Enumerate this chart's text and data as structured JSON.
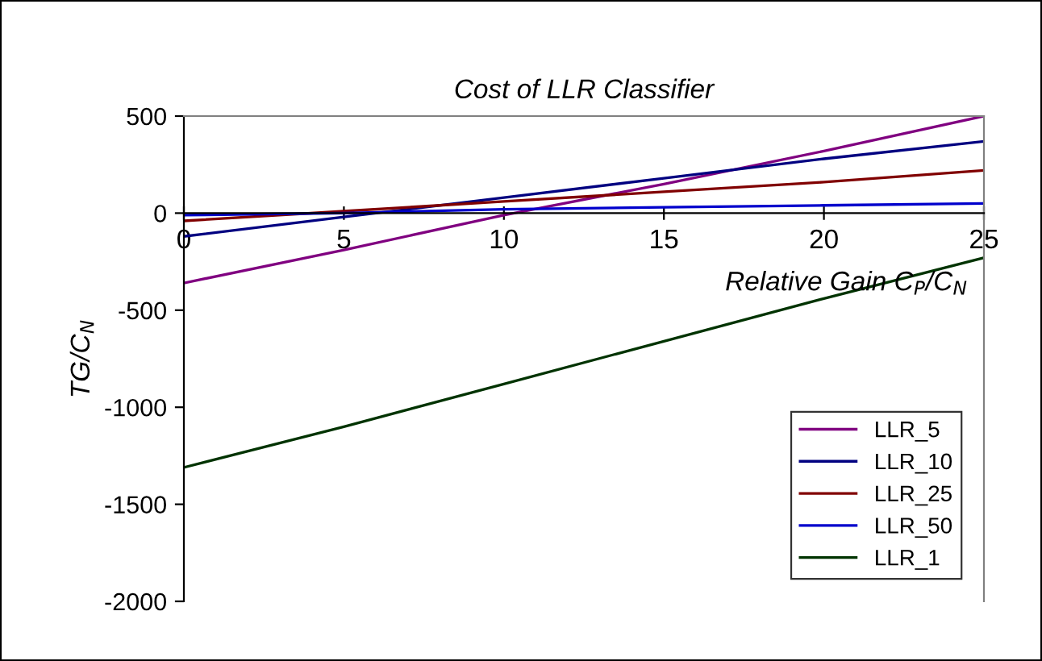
{
  "chart_data": {
    "type": "line",
    "title": "Cost of LLR Classifier",
    "xlabel": "Relative Gain C$_{P}$/C$_{N}$",
    "ylabel": "TG/C$_{N}$",
    "x": [
      0,
      5,
      10,
      15,
      20,
      25
    ],
    "series": [
      {
        "name": "LLR_5",
        "color": "#800080",
        "values": [
          -360,
          -190,
          -10,
          150,
          320,
          500
        ]
      },
      {
        "name": "LLR_10",
        "color": "#000080",
        "values": [
          -120,
          -20,
          80,
          180,
          280,
          370
        ]
      },
      {
        "name": "LLR_25",
        "color": "#800000",
        "values": [
          -40,
          10,
          60,
          110,
          160,
          220
        ]
      },
      {
        "name": "LLR_50",
        "color": "#0000cc",
        "values": [
          -10,
          0,
          20,
          30,
          40,
          50
        ]
      },
      {
        "name": "LLR_1",
        "color": "#003300",
        "values": [
          -1310,
          -1100,
          -880,
          -660,
          -440,
          -230
        ]
      }
    ],
    "xlim": [
      0,
      25
    ],
    "xticks": [
      0,
      5,
      10,
      15,
      20,
      25
    ],
    "ylim": [
      -2000,
      500
    ],
    "yticks": [
      -2000,
      -1500,
      -1000,
      -500,
      0,
      500
    ],
    "grid": false,
    "legend": "bottom right",
    "marker": "none",
    "line_style": "solid"
  }
}
